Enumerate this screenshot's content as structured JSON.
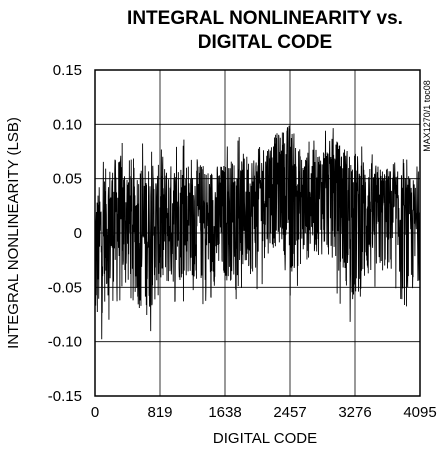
{
  "chart_data": {
    "type": "line",
    "title_lines": [
      "INTEGRAL NONLINEARITY vs.",
      "DIGITAL CODE"
    ],
    "xlabel": "DIGITAL CODE",
    "ylabel": "INTEGRAL NONLINEARITY (LSB)",
    "side_note": "MAX1270/1 toc08",
    "xlim": [
      0,
      4095
    ],
    "ylim": [
      -0.15,
      0.15
    ],
    "x_ticks": [
      0,
      819,
      1638,
      2457,
      3276,
      4095
    ],
    "x_tick_labels": [
      "0",
      "819",
      "1638",
      "2457",
      "3276",
      "4095"
    ],
    "y_ticks": [
      0.15,
      0.1,
      0.05,
      0,
      -0.05,
      -0.1,
      -0.15
    ],
    "y_tick_labels": [
      "0.15",
      "0.10",
      "0.05",
      "0",
      "-0.05",
      "-0.10",
      "-0.15"
    ],
    "grid": true,
    "series": [
      {
        "color": "#000000",
        "x": [
          0,
          150,
          300,
          450,
          600,
          819,
          1000,
          1200,
          1400,
          1638,
          1800,
          2000,
          2200,
          2350,
          2457,
          2600,
          2800,
          3000,
          3276,
          3500,
          3700,
          3900,
          4095
        ],
        "values": [
          -0.01,
          0.01,
          0.02,
          0.01,
          0.0,
          0.01,
          0.02,
          0.02,
          0.01,
          0.02,
          0.02,
          0.03,
          0.05,
          0.05,
          0.05,
          0.03,
          0.04,
          0.05,
          0.03,
          0.02,
          0.03,
          0.01,
          0.01
        ],
        "envelope_high": [
          0.05,
          0.08,
          0.09,
          0.09,
          0.09,
          0.08,
          0.08,
          0.09,
          0.08,
          0.08,
          0.09,
          0.09,
          0.1,
          0.11,
          0.12,
          0.09,
          0.09,
          0.1,
          0.09,
          0.08,
          0.07,
          0.07,
          0.06
        ],
        "envelope_low": [
          -0.13,
          -0.08,
          -0.1,
          -0.06,
          -0.11,
          -0.08,
          -0.07,
          -0.06,
          -0.07,
          -0.07,
          -0.06,
          -0.06,
          -0.04,
          -0.03,
          -0.07,
          -0.05,
          -0.04,
          -0.05,
          -0.1,
          -0.06,
          -0.06,
          -0.1,
          -0.06
        ]
      }
    ]
  }
}
